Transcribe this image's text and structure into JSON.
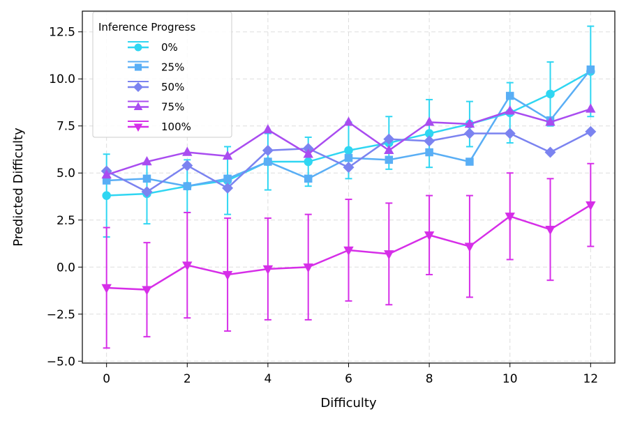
{
  "chart_data": {
    "type": "line",
    "xlabel": "Difficulty",
    "ylabel": "Predicted Difficulty",
    "xlim": [
      -0.6,
      12.6
    ],
    "ylim": [
      -5.1,
      13.6
    ],
    "xticks": [
      0,
      2,
      4,
      6,
      8,
      10,
      12
    ],
    "yticks": [
      -5.0,
      -2.5,
      0.0,
      2.5,
      5.0,
      7.5,
      10.0,
      12.5
    ],
    "ytick_labels": [
      "−5.0",
      "−2.5",
      "0.0",
      "2.5",
      "5.0",
      "7.5",
      "10.0",
      "12.5"
    ],
    "grid": true,
    "legend": {
      "title": "Inference Progress",
      "placement": "top-left"
    },
    "x": [
      0,
      1,
      2,
      3,
      4,
      5,
      6,
      7,
      8,
      9,
      10,
      11,
      12
    ],
    "series": [
      {
        "name": "0%",
        "marker": "circle",
        "color": "#2fd6f2",
        "values": [
          3.8,
          3.9,
          4.3,
          4.6,
          5.6,
          5.6,
          6.2,
          6.6,
          7.1,
          7.6,
          8.2,
          9.2,
          10.4
        ],
        "errors": [
          2.2,
          1.6,
          1.4,
          1.8,
          1.5,
          1.3,
          1.5,
          1.4,
          1.8,
          1.2,
          1.6,
          1.7,
          2.4
        ]
      },
      {
        "name": "25%",
        "marker": "square",
        "color": "#59aef5",
        "values": [
          4.6,
          4.7,
          4.3,
          4.7,
          5.6,
          4.7,
          5.8,
          5.7,
          6.1,
          5.6,
          9.1,
          7.8,
          10.5
        ],
        "errors": [
          null,
          null,
          null,
          null,
          null,
          null,
          null,
          null,
          null,
          null,
          null,
          null,
          null
        ]
      },
      {
        "name": "50%",
        "marker": "diamond",
        "color": "#7b83f0",
        "values": [
          5.1,
          4.0,
          5.4,
          4.2,
          6.2,
          6.3,
          5.3,
          6.8,
          6.7,
          7.1,
          7.1,
          6.1,
          7.2
        ],
        "errors": [
          null,
          null,
          null,
          null,
          null,
          null,
          null,
          null,
          null,
          null,
          null,
          null,
          null
        ]
      },
      {
        "name": "75%",
        "marker": "triangle-up",
        "color": "#a94cf0",
        "values": [
          4.9,
          5.6,
          6.1,
          5.9,
          7.3,
          6.0,
          7.7,
          6.2,
          7.7,
          7.6,
          8.3,
          7.7,
          8.4
        ],
        "errors": [
          null,
          null,
          null,
          null,
          null,
          null,
          null,
          null,
          null,
          null,
          null,
          null,
          null
        ]
      },
      {
        "name": "100%",
        "marker": "triangle-down",
        "color": "#d62ee8",
        "values": [
          -1.1,
          -1.2,
          0.1,
          -0.4,
          -0.1,
          0.0,
          0.9,
          0.7,
          1.7,
          1.1,
          2.7,
          2.0,
          3.3
        ],
        "errors": [
          3.2,
          2.5,
          2.8,
          3.0,
          2.7,
          2.8,
          2.7,
          2.7,
          2.1,
          2.7,
          2.3,
          2.7,
          2.2
        ]
      }
    ]
  }
}
